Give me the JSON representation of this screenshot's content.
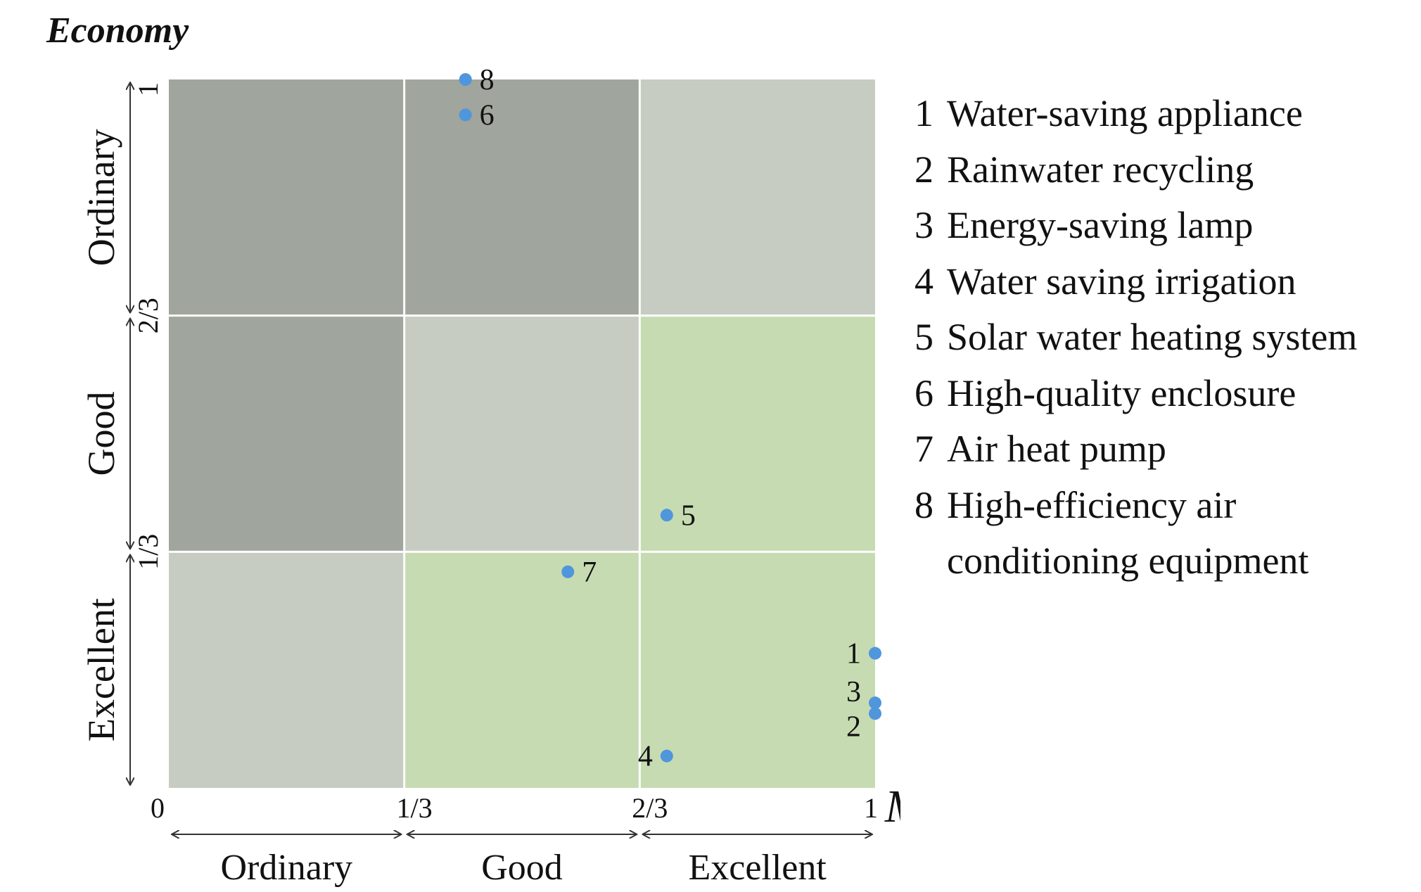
{
  "chart_data": {
    "type": "scatter",
    "x_axis": {
      "title": "Maturity",
      "range": [
        0,
        1
      ],
      "ticks": [
        "0",
        "1/3",
        "2/3",
        "1"
      ],
      "bands": [
        "Ordinary",
        "Good",
        "Excellent"
      ]
    },
    "y_axis": {
      "title": "Economy",
      "range": [
        0,
        1
      ],
      "ticks": [
        "1/3",
        "2/3",
        "1"
      ],
      "bands": [
        "Excellent",
        "Good",
        "Ordinary"
      ]
    },
    "points": [
      {
        "id": "1",
        "x": 1.0,
        "y": 0.19
      },
      {
        "id": "2",
        "x": 1.0,
        "y": 0.105
      },
      {
        "id": "3",
        "x": 1.0,
        "y": 0.12
      },
      {
        "id": "4",
        "x": 0.705,
        "y": 0.045
      },
      {
        "id": "5",
        "x": 0.705,
        "y": 0.385
      },
      {
        "id": "6",
        "x": 0.42,
        "y": 0.95
      },
      {
        "id": "7",
        "x": 0.565,
        "y": 0.305
      },
      {
        "id": "8",
        "x": 0.42,
        "y": 1.0
      }
    ],
    "legend": [
      {
        "num": "1",
        "label": "Water-saving appliance"
      },
      {
        "num": "2",
        "label": "Rainwater recycling"
      },
      {
        "num": "3",
        "label": "Energy-saving lamp"
      },
      {
        "num": "4",
        "label": "Water saving irrigation"
      },
      {
        "num": "5",
        "label": "Solar water heating system"
      },
      {
        "num": "6",
        "label": "High-quality enclosure"
      },
      {
        "num": "7",
        "label": "Air heat pump"
      },
      {
        "num": "8",
        "label": "High-efficiency air conditioning equipment"
      }
    ],
    "colors": {
      "dark": "#a0a59d",
      "mid": "#c6ccc1",
      "green": "#c6dbb1",
      "point": "#4f96dc"
    }
  }
}
